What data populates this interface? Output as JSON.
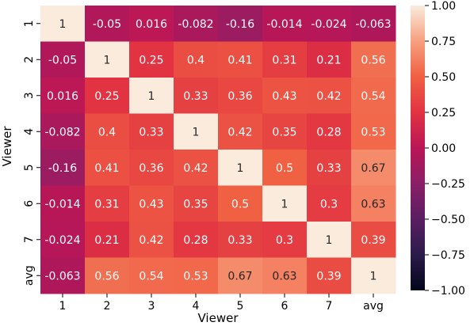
{
  "chart_data": {
    "type": "heatmap",
    "xlabel": "Viewer",
    "ylabel": "Viewer",
    "x_categories": [
      "1",
      "2",
      "3",
      "4",
      "5",
      "6",
      "7",
      "avg"
    ],
    "y_categories": [
      "1",
      "2",
      "3",
      "4",
      "5",
      "6",
      "7",
      "avg"
    ],
    "values": [
      [
        1,
        -0.05,
        0.016,
        -0.082,
        -0.16,
        -0.014,
        -0.024,
        -0.063
      ],
      [
        -0.05,
        1,
        0.25,
        0.4,
        0.41,
        0.31,
        0.21,
        0.56
      ],
      [
        0.016,
        0.25,
        1,
        0.33,
        0.36,
        0.43,
        0.42,
        0.54
      ],
      [
        -0.082,
        0.4,
        0.33,
        1,
        0.42,
        0.35,
        0.28,
        0.53
      ],
      [
        -0.16,
        0.41,
        0.36,
        0.42,
        1,
        0.5,
        0.33,
        0.67
      ],
      [
        -0.014,
        0.31,
        0.43,
        0.35,
        0.5,
        1,
        0.3,
        0.63
      ],
      [
        -0.024,
        0.21,
        0.42,
        0.28,
        0.33,
        0.3,
        1,
        0.39
      ],
      [
        -0.063,
        0.56,
        0.54,
        0.53,
        0.67,
        0.63,
        0.39,
        1
      ]
    ],
    "labels": [
      [
        "1",
        "-0.05",
        "0.016",
        "-0.082",
        "-0.16",
        "-0.014",
        "-0.024",
        "-0.063"
      ],
      [
        "-0.05",
        "1",
        "0.25",
        "0.4",
        "0.41",
        "0.31",
        "0.21",
        "0.56"
      ],
      [
        "0.016",
        "0.25",
        "1",
        "0.33",
        "0.36",
        "0.43",
        "0.42",
        "0.54"
      ],
      [
        "-0.082",
        "0.4",
        "0.33",
        "1",
        "0.42",
        "0.35",
        "0.28",
        "0.53"
      ],
      [
        "-0.16",
        "0.41",
        "0.36",
        "0.42",
        "1",
        "0.5",
        "0.33",
        "0.67"
      ],
      [
        "-0.014",
        "0.31",
        "0.43",
        "0.35",
        "0.5",
        "1",
        "0.3",
        "0.63"
      ],
      [
        "-0.024",
        "0.21",
        "0.42",
        "0.28",
        "0.33",
        "0.3",
        "1",
        "0.39"
      ],
      [
        "-0.063",
        "0.56",
        "0.54",
        "0.53",
        "0.67",
        "0.63",
        "0.39",
        "1"
      ]
    ],
    "vmin": -1,
    "vmax": 1,
    "colormap": "rocket",
    "colorbar_ticks": [
      "1.00",
      "0.75",
      "0.50",
      "0.25",
      "0.00",
      "−0.25",
      "−0.50",
      "−0.75",
      "−1.00"
    ],
    "colorbar_tick_values": [
      1,
      0.75,
      0.5,
      0.25,
      0,
      -0.25,
      -0.5,
      -0.75,
      -1
    ],
    "legend_position": "right"
  }
}
